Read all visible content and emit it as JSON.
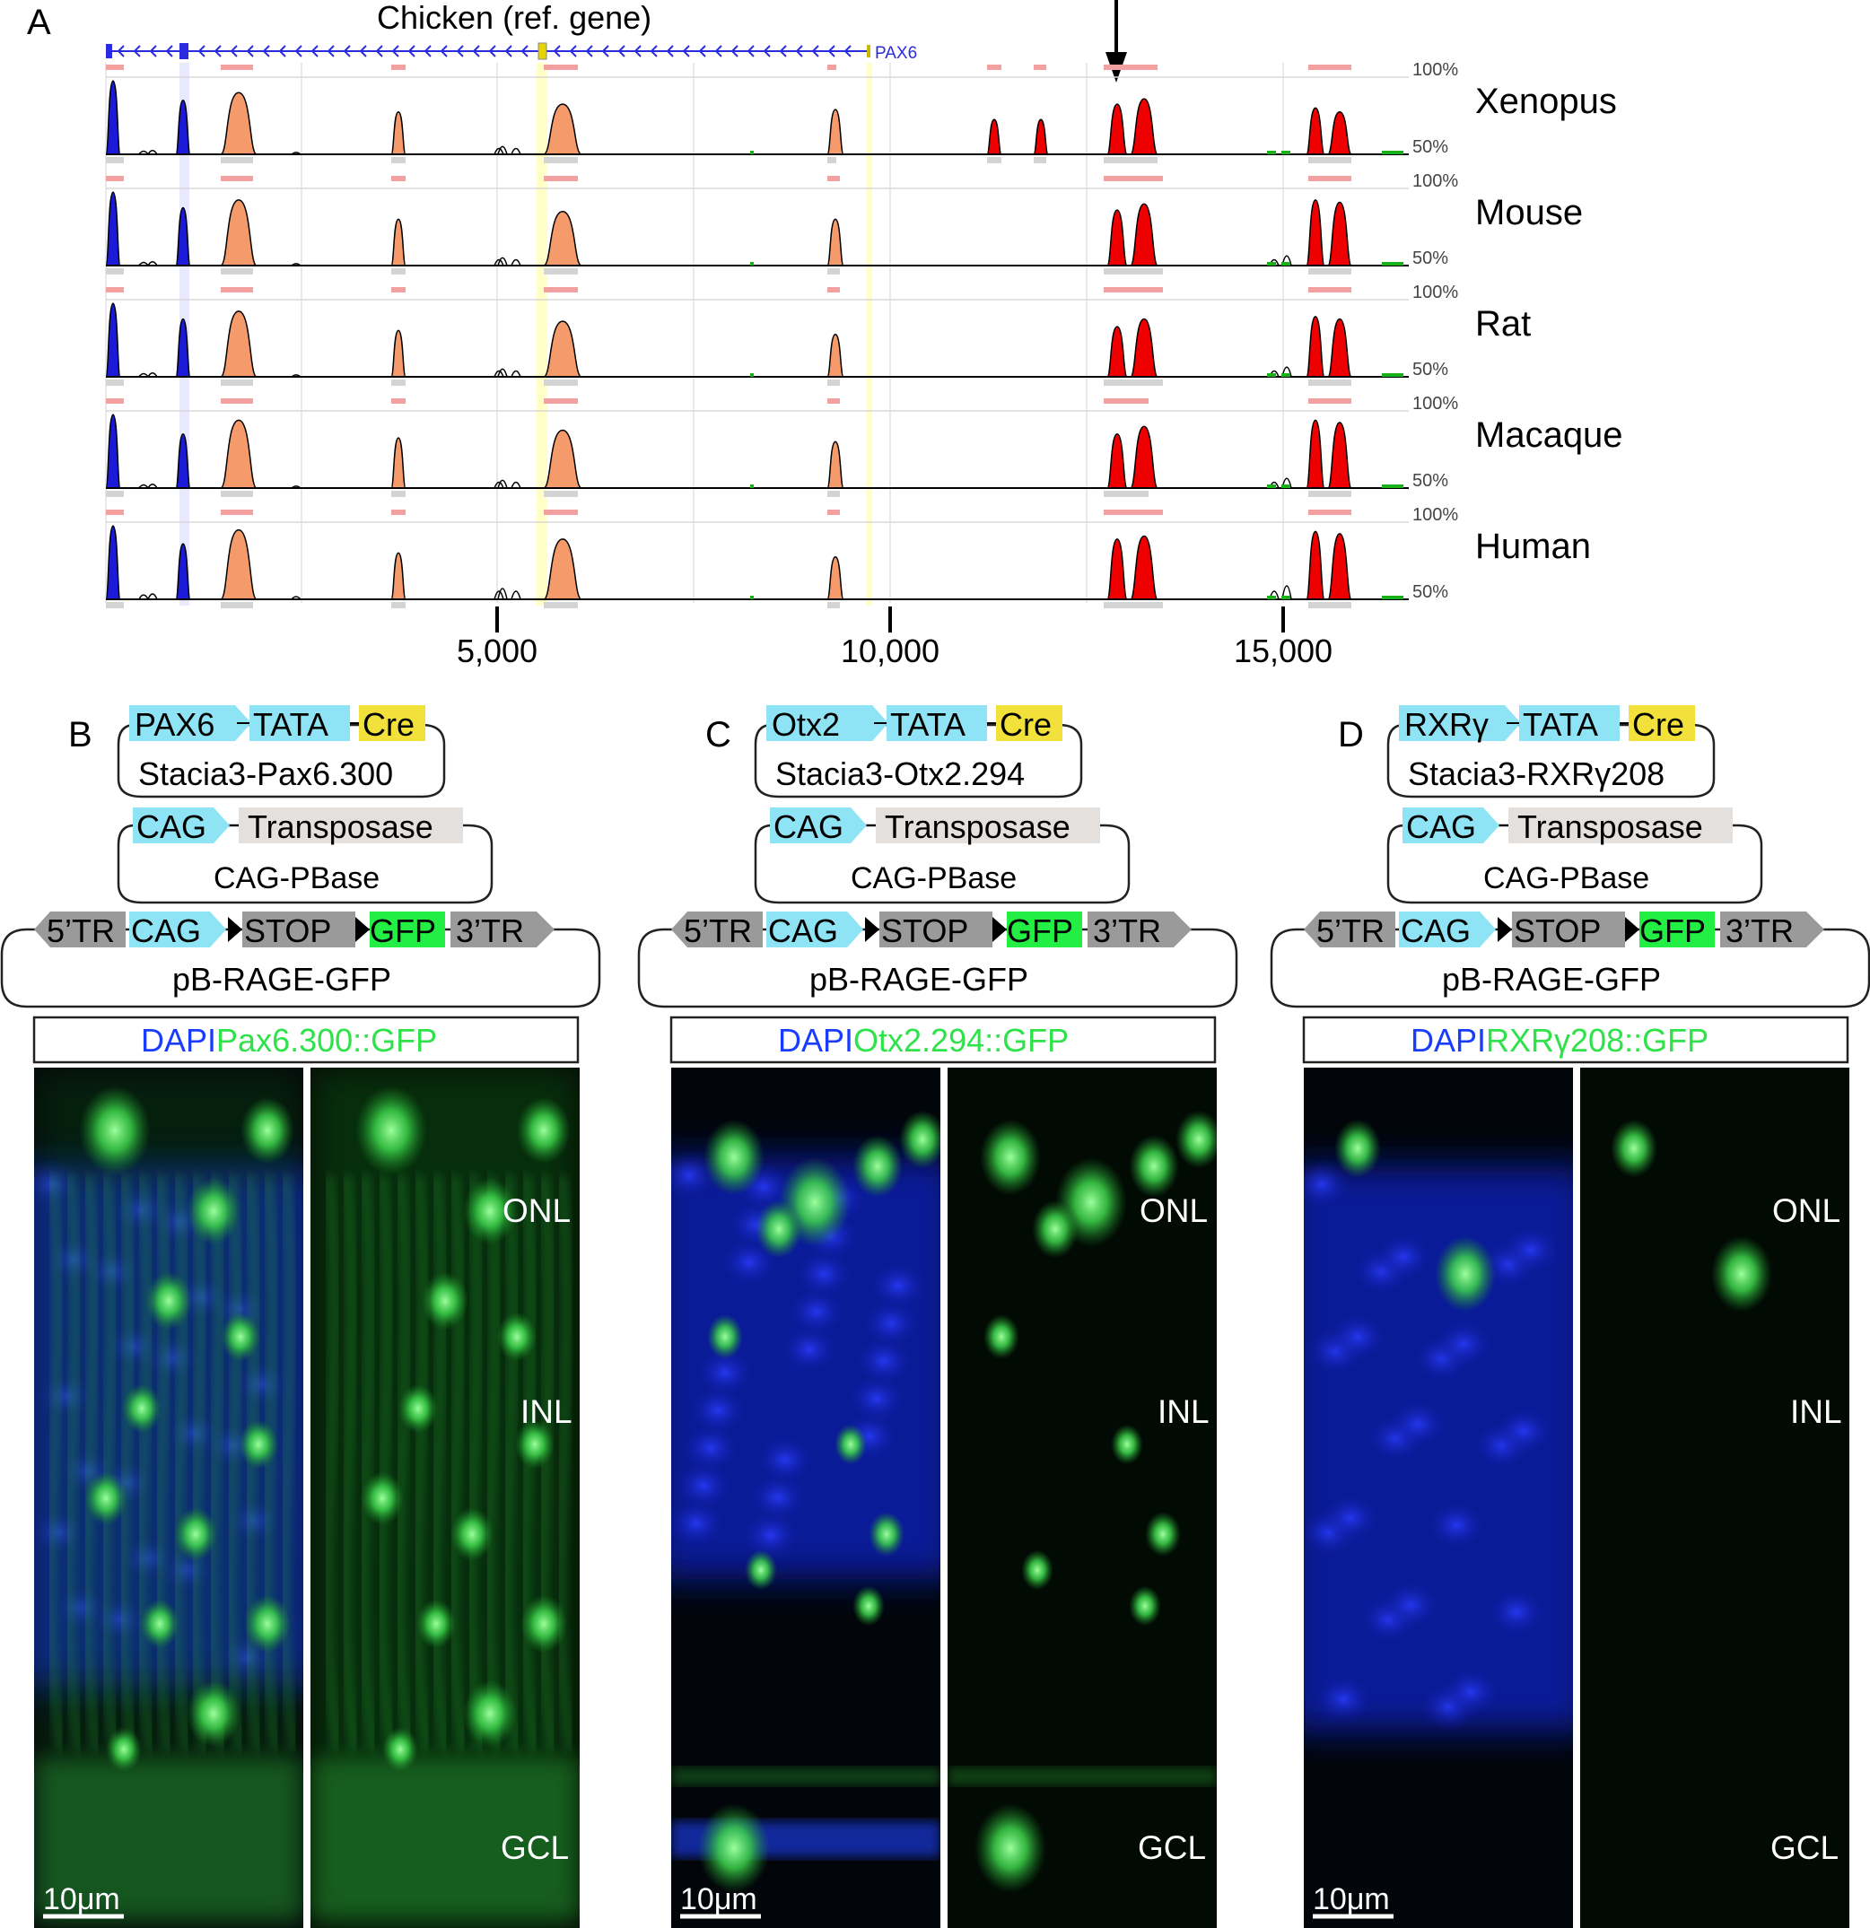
{
  "panelA": {
    "letter": "A",
    "title": "Chicken (ref. gene)",
    "gene_label": "PAX6",
    "pct_high": "100%",
    "pct_low": "50%",
    "species": [
      "Xenopus",
      "Mouse",
      "Rat",
      "Macaque",
      "Human"
    ],
    "x_ticks": [
      "5,000",
      "10,000",
      "15,000"
    ],
    "arrow": "down-arrow"
  },
  "constructs": [
    {
      "letter": "B",
      "enhancer_name": "PAX6",
      "tata": "TATA",
      "cre": "Cre",
      "plasmid": "Stacia3-Pax6.300",
      "reporter_label": "Pax6.300::GFP"
    },
    {
      "letter": "C",
      "enhancer_name": "Otx2",
      "tata": "TATA",
      "cre": "Cre",
      "plasmid": "Stacia3-Otx2.294",
      "reporter_label": "Otx2.294::GFP"
    },
    {
      "letter": "D",
      "enhancer_name": "RXRγ",
      "tata": "TATA",
      "cre": "Cre",
      "plasmid": "Stacia3-RXRγ208",
      "reporter_label": "RXRγ208::GFP"
    }
  ],
  "shared": {
    "cag": "CAG",
    "transposase": "Transposase",
    "pbase_plasmid": "CAG-PBase",
    "tr5": "5’TR",
    "stop": "STOP",
    "gfp": "GFP",
    "tr3": "3’TR",
    "rage_plasmid": "pB-RAGE-GFP",
    "dapi": "DAPI",
    "layers": [
      "ONL",
      "INL",
      "GCL"
    ],
    "scale_bar": "10μm"
  },
  "colors": {
    "enhancer_cyan": "#8ee4f4",
    "cre_yellow": "#f2e13a",
    "transposase_grey": "#e4e0de",
    "tr_grey": "#9a9a9a",
    "gfp_green": "#22ee44",
    "dapi_blue": "#1a3cff",
    "reporter_green": "#2fe24a",
    "exon_blue": "#1a1ad8",
    "utr_orange": "#f59a6a",
    "ncs_red": "#ee0000",
    "other_green": "#1ab01a"
  }
}
